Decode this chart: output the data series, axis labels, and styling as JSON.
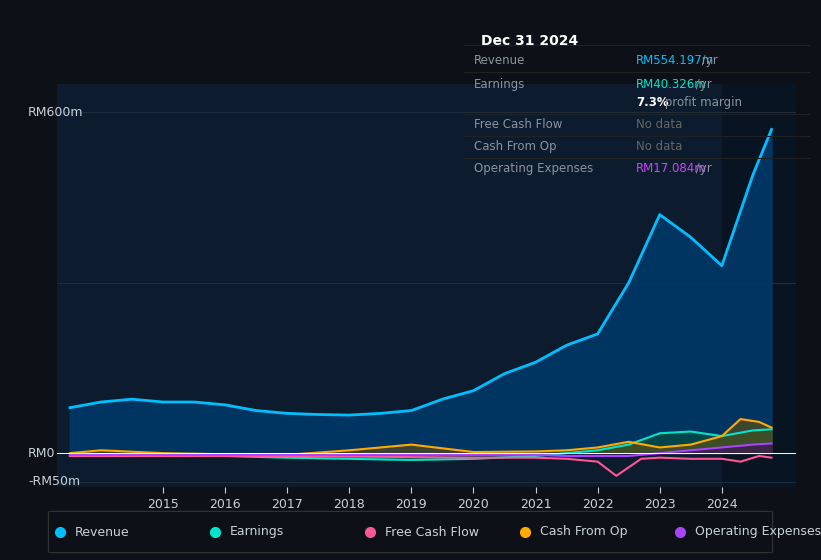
{
  "bg_color": "#0d1117",
  "plot_bg_color": "#0d1b2e",
  "grid_color": "#1e2d3d",
  "text_color": "#c9d1d9",
  "dim_text_color": "#8b949e",
  "title_label": "Dec 31 2024",
  "ylabel_top": "RM600m",
  "ylabel_zero": "RM0",
  "ylabel_neg": "-RM50m",
  "x_ticks": [
    2015,
    2016,
    2017,
    2018,
    2019,
    2020,
    2021,
    2022,
    2023,
    2024
  ],
  "legend": [
    {
      "label": "Revenue",
      "color": "#00bfff"
    },
    {
      "label": "Earnings",
      "color": "#00e5cc"
    },
    {
      "label": "Free Cash Flow",
      "color": "#ff5599"
    },
    {
      "label": "Cash From Op",
      "color": "#ffaa00"
    },
    {
      "label": "Operating Expenses",
      "color": "#aa44ff"
    }
  ],
  "revenue": {
    "x": [
      2013.5,
      2014.0,
      2014.5,
      2015.0,
      2015.5,
      2016.0,
      2016.5,
      2017.0,
      2017.5,
      2018.0,
      2018.5,
      2019.0,
      2019.5,
      2020.0,
      2020.5,
      2021.0,
      2021.5,
      2022.0,
      2022.5,
      2023.0,
      2023.5,
      2024.0,
      2024.5,
      2024.8
    ],
    "y": [
      80,
      90,
      95,
      90,
      90,
      85,
      75,
      70,
      68,
      67,
      70,
      75,
      95,
      110,
      140,
      160,
      190,
      210,
      300,
      420,
      380,
      330,
      490,
      570
    ],
    "color": "#00bfff",
    "fill_color": "#003a6b"
  },
  "earnings": {
    "x": [
      2013.5,
      2014.0,
      2015.0,
      2016.0,
      2017.0,
      2018.0,
      2019.0,
      2020.0,
      2021.0,
      2021.5,
      2022.0,
      2022.5,
      2023.0,
      2023.5,
      2024.0,
      2024.5,
      2024.8
    ],
    "y": [
      -5,
      -3,
      -3,
      -5,
      -8,
      -10,
      -12,
      -10,
      -5,
      0,
      5,
      15,
      35,
      38,
      30,
      40,
      42
    ],
    "color": "#00e5cc",
    "fill_color": "#004d44"
  },
  "free_cash_flow": {
    "x": [
      2013.5,
      2014.0,
      2015.0,
      2016.0,
      2017.0,
      2018.0,
      2019.0,
      2020.0,
      2021.0,
      2021.5,
      2022.0,
      2022.3,
      2022.7,
      2023.0,
      2023.5,
      2024.0,
      2024.3,
      2024.6,
      2024.8
    ],
    "y": [
      -5,
      -5,
      -5,
      -5,
      -5,
      -6,
      -7,
      -8,
      -8,
      -10,
      -15,
      -40,
      -10,
      -8,
      -10,
      -10,
      -15,
      -5,
      -8
    ],
    "color": "#ff5599"
  },
  "cash_from_op": {
    "x": [
      2013.5,
      2014.0,
      2015.0,
      2016.0,
      2017.0,
      2018.0,
      2019.0,
      2020.0,
      2021.0,
      2021.5,
      2022.0,
      2022.5,
      2023.0,
      2023.5,
      2024.0,
      2024.3,
      2024.6,
      2024.8
    ],
    "y": [
      0,
      5,
      0,
      -2,
      -3,
      5,
      15,
      2,
      3,
      5,
      10,
      20,
      10,
      15,
      30,
      60,
      55,
      45
    ],
    "color": "#ffaa00"
  },
  "op_expenses": {
    "x": [
      2013.5,
      2014.0,
      2015.0,
      2016.0,
      2017.0,
      2018.0,
      2019.0,
      2020.0,
      2021.0,
      2021.5,
      2022.0,
      2022.5,
      2023.0,
      2023.5,
      2024.0,
      2024.5,
      2024.8
    ],
    "y": [
      -3,
      -3,
      -3,
      -3,
      -3,
      -3,
      -3,
      -3,
      -3,
      -5,
      -5,
      -5,
      0,
      5,
      10,
      15,
      17
    ],
    "color": "#aa44ff"
  },
  "ylim": [
    -60,
    650
  ],
  "xlim": [
    2013.3,
    2025.2
  ],
  "dark_overlay_x": 2024.0,
  "table_rows": [
    {
      "label": "Revenue",
      "val": "RM554.197m",
      "suffix": " /yr",
      "val_color": "#00bfff",
      "bold": false
    },
    {
      "label": "Earnings",
      "val": "RM40.326m",
      "suffix": " /yr",
      "val_color": "#00e5cc",
      "bold": false
    },
    {
      "label": "",
      "val": "7.3%",
      "suffix": " profit margin",
      "val_color": "white",
      "bold": true
    },
    {
      "label": "Free Cash Flow",
      "val": "No data",
      "suffix": "",
      "val_color": "#666666",
      "bold": false
    },
    {
      "label": "Cash From Op",
      "val": "No data",
      "suffix": "",
      "val_color": "#666666",
      "bold": false
    },
    {
      "label": "Operating Expenses",
      "val": "RM17.084m",
      "suffix": " /yr",
      "val_color": "#cc44ff",
      "bold": false
    }
  ]
}
